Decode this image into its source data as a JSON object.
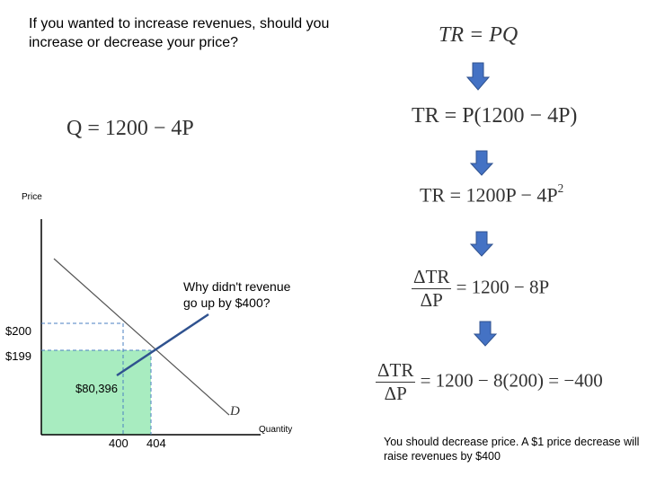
{
  "question": "If you wanted to increase revenues, should you increase or decrease your price?",
  "demand_equation": "Q = 1200 − 4P",
  "steps": {
    "step1": "TR = PQ",
    "step2": "TR = P(1200 − 4P)",
    "step3_main": "TR = 1200P − 4P",
    "step3_exp": "2",
    "step4_num": "ΔTR",
    "step4_den": "ΔP",
    "step4_rhs": "= 1200 − 8P",
    "step5_num": "ΔTR",
    "step5_den": "ΔP",
    "step5_rhs": "= 1200 − 8(200) = −400"
  },
  "graph": {
    "y_axis_label": "Price",
    "x_axis_label": "Quantity",
    "price_high": "$200",
    "price_low": "$199",
    "quantity_low": "400",
    "quantity_high": "404",
    "revenue_label": "$80,396",
    "demand_label": "D",
    "callout": "Why didn't revenue go up by $400?"
  },
  "conclusion": "You should decrease price.  A $1 price decrease will raise revenues by $400",
  "colors": {
    "arrow_fill": "#4472c4",
    "arrow_stroke": "#2f528f",
    "revenue_fill": "#a8ecc0",
    "guide_line": "#4a7fc1",
    "demand_line": "#555555"
  }
}
